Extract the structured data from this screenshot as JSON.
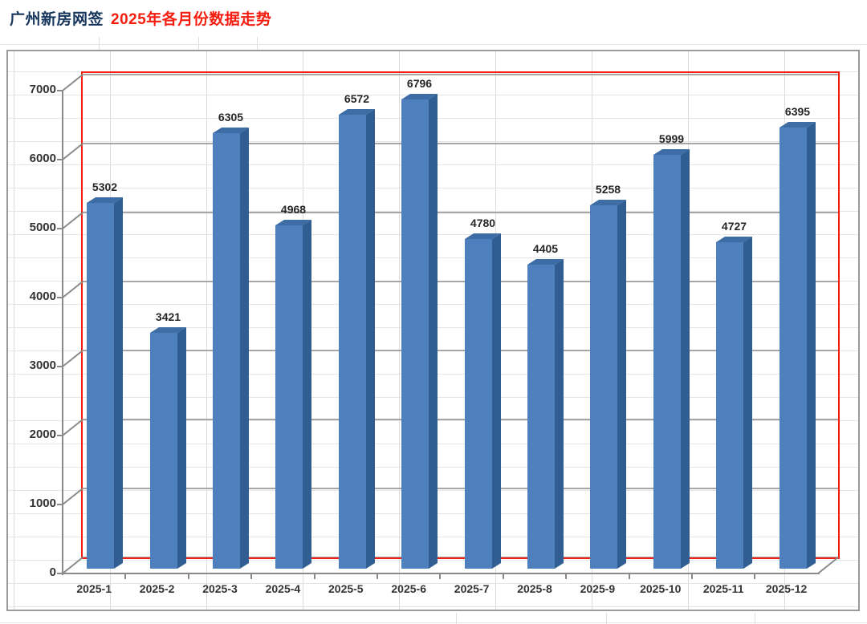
{
  "title": {
    "prefix": "广州新房网签",
    "main": "2025年各月份数据走势"
  },
  "chart_data": {
    "type": "bar",
    "style": "3d-column-excel",
    "title": "广州新房网签 2025年各月份数据走势",
    "categories": [
      "2025-1",
      "2025-2",
      "2025-3",
      "2025-4",
      "2025-5",
      "2025-6",
      "2025-7",
      "2025-8",
      "2025-9",
      "2025-10",
      "2025-11",
      "2025-12"
    ],
    "values": [
      5302,
      3421,
      6305,
      4968,
      6572,
      6796,
      4780,
      4405,
      5258,
      5999,
      4727,
      6395
    ],
    "data_labels": true,
    "xlabel": "",
    "ylabel": "",
    "ylim": [
      0,
      7000
    ],
    "yticks": [
      0,
      1000,
      2000,
      3000,
      4000,
      5000,
      6000,
      7000
    ],
    "grid": true,
    "legend": false
  },
  "colors": {
    "bar_front": "#4d80bd",
    "bar_top": "#3e6ca5",
    "bar_side": "#315e92",
    "plot_border_red": "#f51d10",
    "major_gridline": "#a6a6a6",
    "frame_gray": "#8a8a8a",
    "sheet_line": "#e0e0e0",
    "value_label": "#262626",
    "axis_label": "#333333",
    "title_prefix": "#17365d",
    "title_main": "#f51d10"
  }
}
